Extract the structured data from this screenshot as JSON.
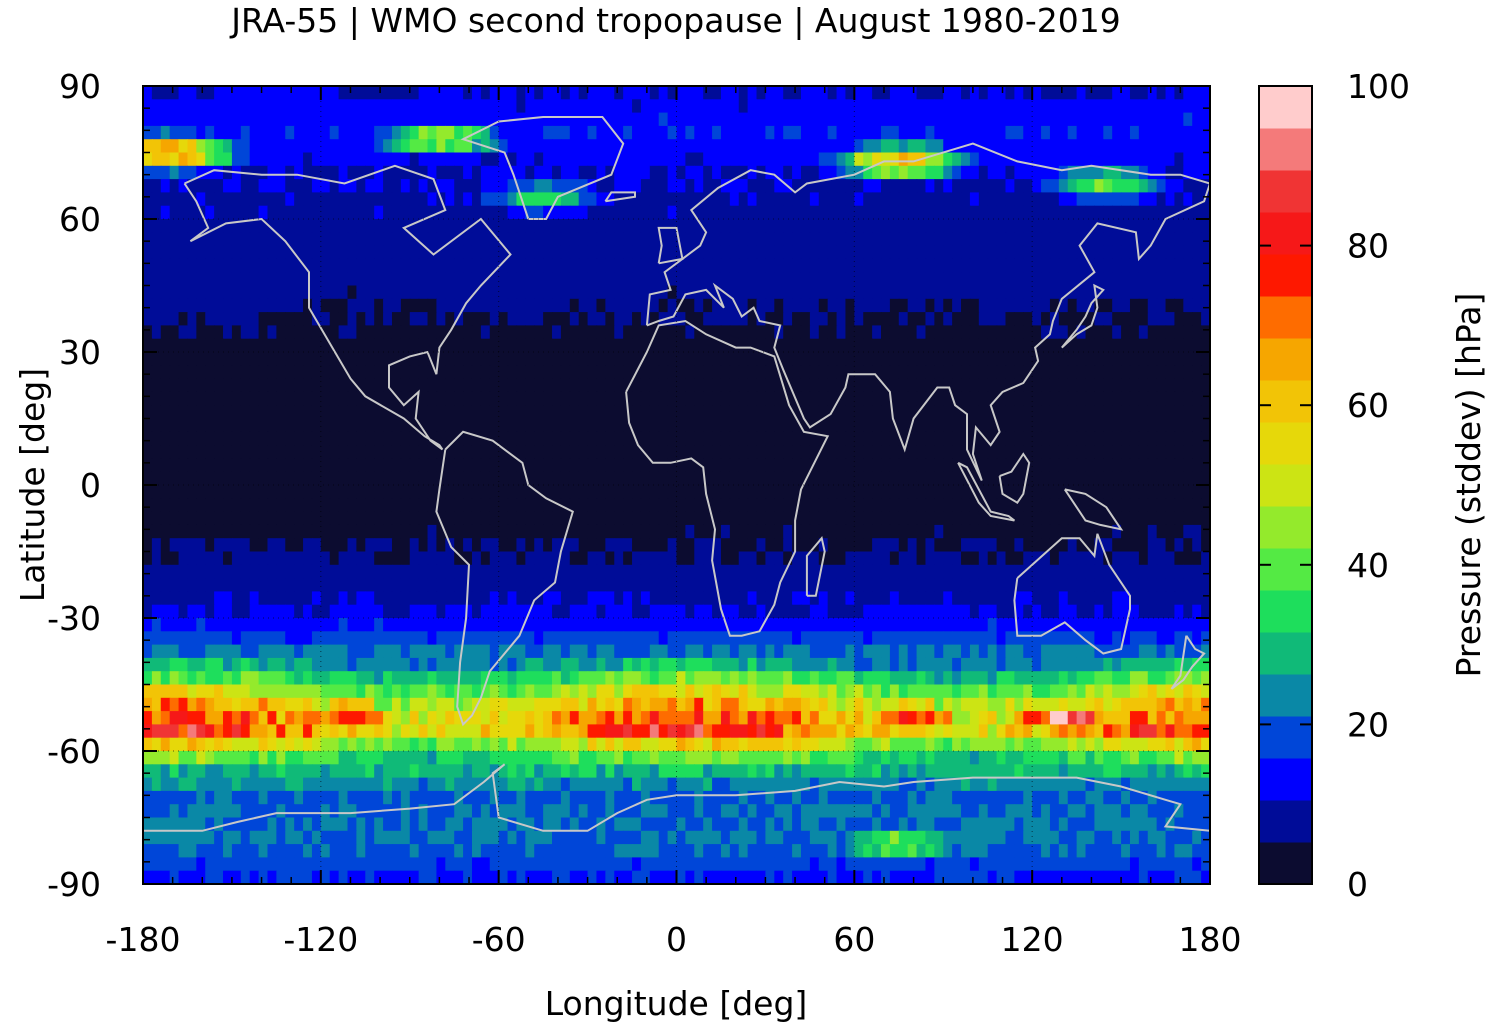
{
  "chart_data": {
    "type": "heatmap",
    "title": "JRA-55 | WMO second tropopause | August 1980-2019",
    "xlabel": "Longitude [deg]",
    "ylabel": "Latitude [deg]",
    "colorbar_label": "Pressure (stddev) [hPa]",
    "xlim": [
      -180,
      180
    ],
    "ylim": [
      -90,
      90
    ],
    "x_ticks": [
      -180,
      -120,
      -60,
      0,
      60,
      120,
      180
    ],
    "y_ticks": [
      -90,
      -60,
      -30,
      0,
      30,
      60,
      90
    ],
    "x_tick_labels": [
      "-180",
      "-120",
      "-60",
      "0",
      "60",
      "120",
      "180"
    ],
    "y_tick_labels": [
      "-90",
      "-60",
      "-30",
      "0",
      "30",
      "60",
      "90"
    ],
    "colorbar_range": [
      0,
      100
    ],
    "colorbar_ticks": [
      0,
      20,
      40,
      60,
      80,
      100
    ],
    "colorbar_tick_labels": [
      "0",
      "20",
      "40",
      "60",
      "80",
      "100"
    ],
    "grid": "dotted",
    "coastlines_color": "#c8c8c8",
    "colorscale": [
      "#0c0c30",
      "#000c98",
      "#0000fe",
      "#0046d8",
      "#0a88a6",
      "#10ba78",
      "#1ede5c",
      "#54ea44",
      "#94ea2c",
      "#cce414",
      "#e6d80a",
      "#f2c406",
      "#f6a600",
      "#fe6c00",
      "#fe1800",
      "#f61818",
      "#f03434",
      "#f47a7a",
      "#ffcccc"
    ],
    "zonal_profile": {
      "latitudes": [
        90,
        80,
        70,
        60,
        50,
        40,
        30,
        20,
        10,
        0,
        -10,
        -20,
        -30,
        -40,
        -45,
        -50,
        -55,
        -60,
        -65,
        -70,
        -80,
        -90
      ],
      "values": [
        10,
        15,
        10,
        9,
        8,
        6,
        3,
        1,
        2,
        3,
        4,
        7,
        12,
        25,
        42,
        60,
        72,
        42,
        28,
        20,
        22,
        14
      ]
    },
    "hotspots": [
      {
        "lon": -110,
        "lat": -52,
        "value": 84
      },
      {
        "lon": -170,
        "lat": -55,
        "value": 78
      },
      {
        "lon": 80,
        "lat": -52,
        "value": 82
      },
      {
        "lon": 130,
        "lat": -53,
        "value": 92
      },
      {
        "lon": 160,
        "lat": -55,
        "value": 84
      },
      {
        "lon": -10,
        "lat": -54,
        "value": 72
      },
      {
        "lon": 75,
        "lat": -81,
        "value": 45
      },
      {
        "lon": -170,
        "lat": 75,
        "value": 70
      },
      {
        "lon": -80,
        "lat": 78,
        "value": 48
      },
      {
        "lon": -45,
        "lat": 65,
        "value": 34
      },
      {
        "lon": 75,
        "lat": 73,
        "value": 62
      },
      {
        "lon": 145,
        "lat": 68,
        "value": 40
      }
    ]
  }
}
